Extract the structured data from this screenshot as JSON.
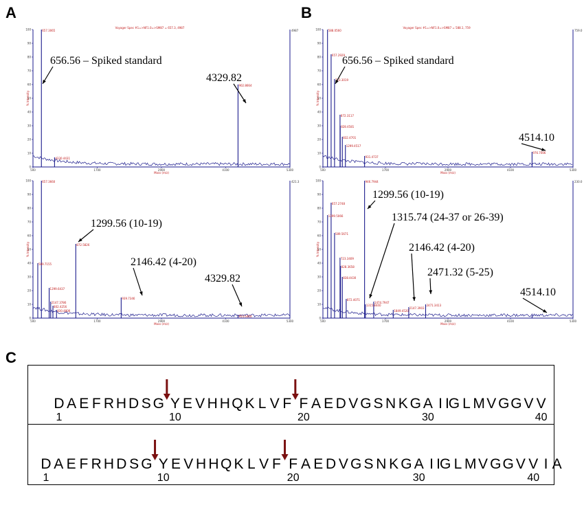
{
  "panel_labels": {
    "a": "A",
    "b": "B",
    "c": "C"
  },
  "spectra": [
    {
      "id": "A-top",
      "header": "Voyager Spec #1=>NF1.0=>SM87 = 657.3, 4987",
      "max_label": "4987",
      "ylabel": "% Intensity",
      "xlabel": "Mass (m/z)",
      "x_ticks": [
        "500",
        "1700",
        "2900",
        "4100",
        "5300"
      ],
      "y_ticks": [
        "100",
        "90",
        "80",
        "70",
        "60",
        "50",
        "40",
        "30",
        "20",
        "10",
        "0"
      ],
      "peak_labels": [
        "657.3065",
        "4330.4431",
        "902.8664"
      ],
      "annotations": [
        "656.56 – Spiked standard",
        "4329.82"
      ]
    },
    {
      "id": "A-bottom",
      "header": "",
      "max_label": "421.3",
      "ylabel": "% Intensity",
      "xlabel": "Mass (m/z)",
      "x_ticks": [
        "500",
        "1700",
        "2900",
        "4100",
        "5300"
      ],
      "y_ticks": [
        "100",
        "90",
        "80",
        "70",
        "60",
        "50",
        "40",
        "30",
        "20",
        "10",
        "0"
      ],
      "peak_labels": [
        "657.3660",
        "589.7155",
        "1299.6437",
        "2147.3786",
        "802.4256",
        "830.4806",
        "872.5826",
        "939.7346",
        "954.6464"
      ],
      "annotations": [
        "1299.56 (10-19)",
        "2146.42 (4-20)",
        "4329.82"
      ]
    },
    {
      "id": "B-top",
      "header": "Voyager Spec #1=>NF1.0=>SM87 = 588.1, 759",
      "max_label": "759.0",
      "ylabel": "% Intensity",
      "xlabel": "Mass (m/z)",
      "x_ticks": [
        "500",
        "1700",
        "2900",
        "4100",
        "5300"
      ],
      "y_ticks": [
        "100",
        "90",
        "80",
        "70",
        "60",
        "50",
        "40",
        "30",
        "20",
        "10",
        "0"
      ],
      "peak_labels": [
        "588.0560",
        "657.2929",
        "723.3019",
        "872.3117",
        "828.4581",
        "832.4701",
        "1299.4517",
        "931.4737",
        "976.7006"
      ],
      "annotations": [
        "656.56 – Spiked standard",
        "4514.10"
      ]
    },
    {
      "id": "B-bottom",
      "header": "",
      "max_label": "230.0",
      "ylabel": "% Intensity",
      "xlabel": "Mass (m/z)",
      "x_ticks": [
        "500",
        "1700",
        "2900",
        "4100",
        "5300"
      ],
      "y_ticks": [
        "100",
        "90",
        "80",
        "70",
        "60",
        "50",
        "40",
        "30",
        "20",
        "10",
        "0"
      ],
      "peak_labels": [
        "1299.5066",
        "657.2748",
        "589.5671",
        "723.3409",
        "828.3658",
        "838.4430",
        "872.4071",
        "946.7944",
        "1315.8440",
        "1474.7947",
        "1849.4520",
        "2147.3903",
        "2471.3413"
      ],
      "annotations": [
        "1299.56 (10-19)",
        "1315.74 (24-37 or 26-39)",
        "2146.42 (4-20)",
        "2471.32 (5-25)",
        "4514.10"
      ]
    }
  ],
  "chart_data": [
    {
      "type": "line",
      "title": "",
      "xlabel": "Mass (m/z)",
      "ylabel": "% Intensity",
      "xlim": [
        500,
        5300
      ],
      "ylim": [
        0,
        100
      ],
      "peaks": [
        {
          "x": 657.3,
          "y": 100
        },
        {
          "x": 902.9,
          "y": 7
        },
        {
          "x": 4330.4,
          "y": 60
        }
      ]
    },
    {
      "type": "line",
      "title": "",
      "xlabel": "Mass (m/z)",
      "ylabel": "% Intensity",
      "xlim": [
        500,
        5300
      ],
      "ylim": [
        0,
        100
      ],
      "peaks": [
        {
          "x": 657.4,
          "y": 100
        },
        {
          "x": 589.7,
          "y": 40
        },
        {
          "x": 802.4,
          "y": 22
        },
        {
          "x": 830.5,
          "y": 12
        },
        {
          "x": 872.6,
          "y": 9
        },
        {
          "x": 939.7,
          "y": 6
        },
        {
          "x": 1299.6,
          "y": 54
        },
        {
          "x": 2147.4,
          "y": 15
        },
        {
          "x": 4329.8,
          "y": 2
        }
      ]
    },
    {
      "type": "line",
      "title": "",
      "xlabel": "Mass (m/z)",
      "ylabel": "% Intensity",
      "xlim": [
        500,
        5300
      ],
      "ylim": [
        0,
        100
      ],
      "peaks": [
        {
          "x": 588.1,
          "y": 100
        },
        {
          "x": 657.3,
          "y": 82
        },
        {
          "x": 723.3,
          "y": 64
        },
        {
          "x": 828.5,
          "y": 38
        },
        {
          "x": 832.5,
          "y": 30
        },
        {
          "x": 872.3,
          "y": 22
        },
        {
          "x": 931.5,
          "y": 16
        },
        {
          "x": 1299.5,
          "y": 8
        },
        {
          "x": 4514.1,
          "y": 11
        }
      ]
    },
    {
      "type": "line",
      "title": "",
      "xlabel": "Mass (m/z)",
      "ylabel": "% Intensity",
      "xlim": [
        500,
        5300
      ],
      "ylim": [
        0,
        100
      ],
      "peaks": [
        {
          "x": 589.6,
          "y": 75
        },
        {
          "x": 657.3,
          "y": 84
        },
        {
          "x": 723.3,
          "y": 62
        },
        {
          "x": 828.4,
          "y": 44
        },
        {
          "x": 838.4,
          "y": 38
        },
        {
          "x": 872.4,
          "y": 30
        },
        {
          "x": 946.8,
          "y": 14
        },
        {
          "x": 1299.5,
          "y": 100
        },
        {
          "x": 1315.8,
          "y": 10
        },
        {
          "x": 1474.8,
          "y": 12
        },
        {
          "x": 1849.5,
          "y": 6
        },
        {
          "x": 2147.4,
          "y": 8
        },
        {
          "x": 2471.3,
          "y": 10
        },
        {
          "x": 4514.1,
          "y": 2
        }
      ]
    }
  ],
  "sequences": [
    {
      "text": "DAEFRHDSGYEVHHQKLVFFAEDVGSNKGAIIGLMVGGVV",
      "residue_numbers": [
        "1",
        "10",
        "20",
        "30",
        "40"
      ],
      "cleavage_after": [
        9,
        19
      ]
    },
    {
      "text": "DAEFRHDSGYEVHHQKLVFFAEDVGSNKGAIIGLMVGGVVIA",
      "residue_numbers": [
        "1",
        "10",
        "20",
        "30",
        "40"
      ],
      "cleavage_after": [
        9,
        19
      ]
    }
  ],
  "colors": {
    "trace": "#1a1a8c",
    "header": "#c01818",
    "arrow_cleavage": "#7a1010"
  }
}
